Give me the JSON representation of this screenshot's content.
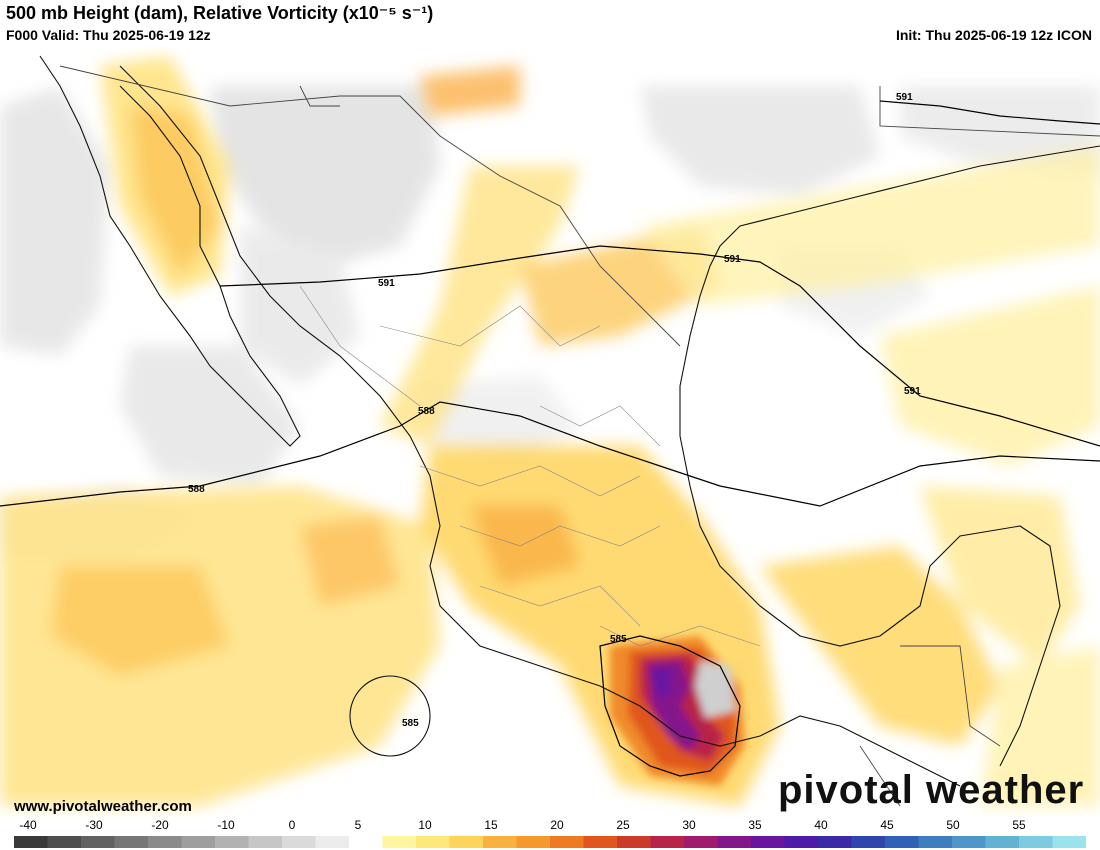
{
  "header": {
    "title": "500 mb Height (dam), Relative Vorticity (x10⁻⁵ s⁻¹)",
    "valid": "F000 Valid: Thu 2025-06-19 12z",
    "init": "Init: Thu 2025-06-19 12z ICON"
  },
  "footer": {
    "site_url": "www.pivotalweather.com",
    "brand": "pivotal weather"
  },
  "height_contours": [
    "591",
    "591",
    "591",
    "591",
    "588",
    "588",
    "585",
    "585"
  ],
  "colorbar": {
    "ticks": [
      "-40",
      "-30",
      "-20",
      "-10",
      "0",
      "5",
      "10",
      "15",
      "20",
      "25",
      "30",
      "35",
      "40",
      "45",
      "50",
      "55"
    ],
    "colors": [
      "#3a3a3a",
      "#4e4e4e",
      "#626262",
      "#767676",
      "#8a8a8a",
      "#9e9e9e",
      "#b2b2b2",
      "#c6c6c6",
      "#dadada",
      "#ececec",
      "#ffffff",
      "#fff59e",
      "#ffe87a",
      "#ffd45a",
      "#fbb23c",
      "#f59a2a",
      "#ee7a22",
      "#e0561e",
      "#cc3a2a",
      "#b8234a",
      "#a01a6e",
      "#84168c",
      "#6a14a0",
      "#4e1aa8",
      "#3a2aa8",
      "#2f46ae",
      "#2f62b6",
      "#3c7ebf",
      "#4e98c9",
      "#62b2d4",
      "#7ccbe0",
      "#9ae2ec"
    ]
  }
}
